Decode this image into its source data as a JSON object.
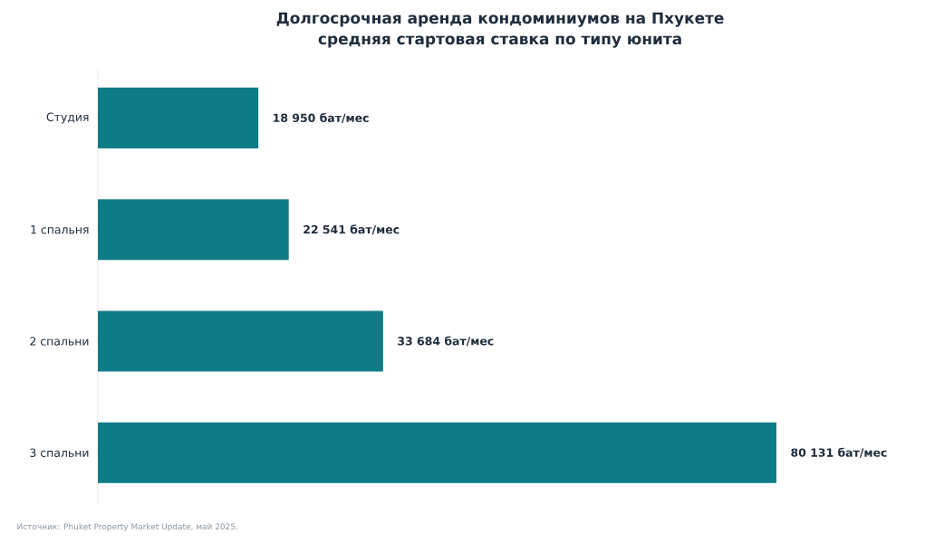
{
  "chart_data": {
    "type": "bar",
    "orientation": "horizontal",
    "title": "Долгосрочная аренда кондоминиумов на Пхукете",
    "subtitle": "средняя стартовая ставка по типу юнита",
    "categories": [
      "Студия",
      "1 спальня",
      "2 спальни",
      "3 спальни"
    ],
    "values": [
      18950,
      22541,
      33684,
      80131
    ],
    "value_labels": [
      "18 950 бат/мес",
      "22 541 бат/мес",
      "33 684 бат/мес",
      "80 131 бат/мес"
    ],
    "color": "#0e7c86",
    "annotations": [
      "Источник: Phuket Property Market Update, май 2025."
    ]
  }
}
